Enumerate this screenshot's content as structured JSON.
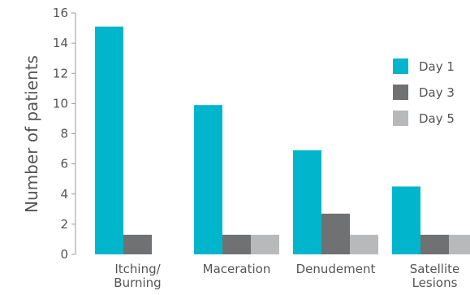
{
  "chart_data": {
    "type": "bar",
    "title": "",
    "xlabel": "",
    "ylabel": "Number of patients",
    "ylim": [
      0,
      16
    ],
    "yticks": [
      0,
      2,
      4,
      6,
      8,
      10,
      12,
      14,
      16
    ],
    "categories": [
      [
        "Itching/",
        "Burning"
      ],
      [
        "Maceration"
      ],
      [
        "Denudement"
      ],
      [
        "Satellite",
        "Lesions"
      ]
    ],
    "series": [
      {
        "name": "Day 1",
        "color": "#00b5cc",
        "values": [
          15.1,
          9.9,
          6.9,
          4.5
        ]
      },
      {
        "name": "Day 3",
        "color": "#707173",
        "values": [
          1.3,
          1.3,
          2.7,
          1.3
        ]
      },
      {
        "name": "Day 5",
        "color": "#b8b9bb",
        "values": [
          null,
          1.3,
          1.3,
          1.3
        ]
      }
    ],
    "legend_position": "right",
    "grid": false
  }
}
